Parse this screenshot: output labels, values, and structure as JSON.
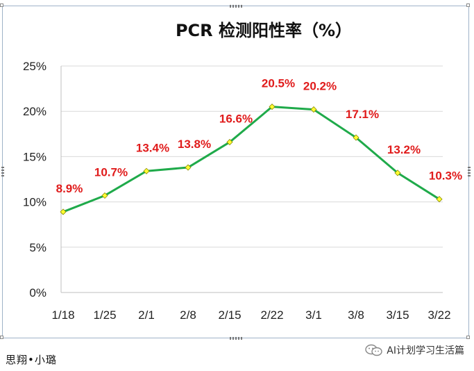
{
  "chart_data": {
    "type": "line",
    "title": "PCR 检测阳性率（%）",
    "categories": [
      "1/18",
      "1/25",
      "2/1",
      "2/8",
      "2/15",
      "2/22",
      "3/1",
      "3/8",
      "3/15",
      "3/22"
    ],
    "series": [
      {
        "values": [
          8.9,
          10.7,
          13.4,
          13.8,
          16.6,
          20.5,
          20.2,
          17.1,
          13.2,
          10.3
        ],
        "labels": [
          "8.9%",
          "10.7%",
          "13.4%",
          "13.8%",
          "16.6%",
          "20.5%",
          "20.2%",
          "17.1%",
          "13.2%",
          "10.3%"
        ],
        "line_color": "#1faa4a",
        "marker_color": "#ffff33",
        "label_color": "#e01b1b"
      }
    ],
    "ylim": [
      0,
      25
    ],
    "yticks": [
      0,
      5,
      10,
      15,
      20,
      25
    ],
    "ytick_labels": [
      "0%",
      "5%",
      "10%",
      "15%",
      "20%",
      "25%"
    ],
    "grid": "horizontal",
    "legend": "none"
  },
  "footer": {
    "author": "思翔•小璐",
    "watermark": "AI计划学习生活篇"
  }
}
